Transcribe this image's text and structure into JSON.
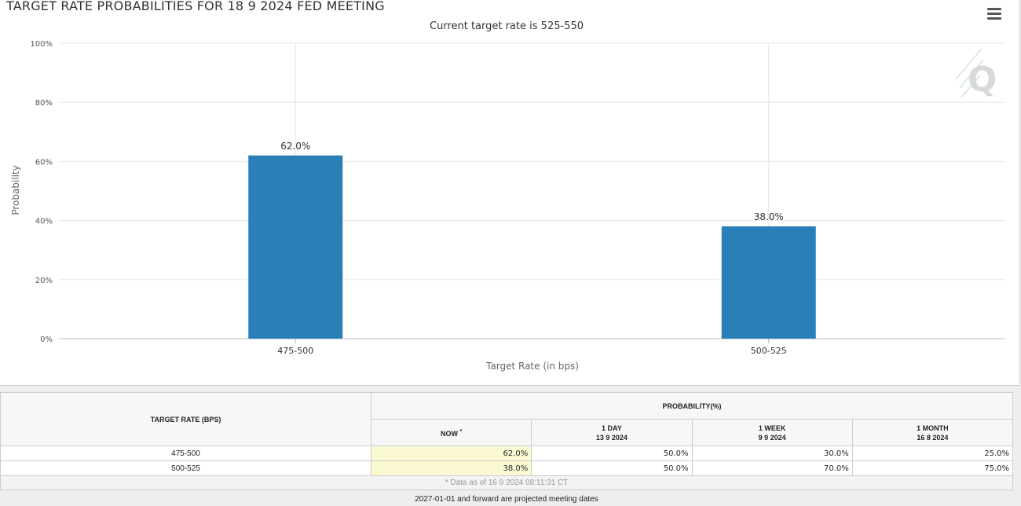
{
  "chart": {
    "title": "TARGET RATE PROBABILITIES FOR 18 9 2024 FED MEETING",
    "subtitle": "Current target rate is 525-550",
    "menu_icon": "hamburger-menu-icon",
    "watermark_icon": "q-logo-icon",
    "bar_color": "#2a7fb8",
    "grid_color": "#e6e6e6"
  },
  "chart_data": {
    "type": "bar",
    "title": "TARGET RATE PROBABILITIES FOR 18 9 2024 FED MEETING",
    "subtitle": "Current target rate is 525-550",
    "categories": [
      "475-500",
      "500-525"
    ],
    "values": [
      62.0,
      38.0
    ],
    "data_labels": [
      "62.0%",
      "38.0%"
    ],
    "xlabel": "Target Rate (in bps)",
    "ylabel": "Probability",
    "ylim": [
      0,
      100
    ],
    "yticks": [
      "0%",
      "20%",
      "40%",
      "60%",
      "80%",
      "100%"
    ],
    "grid": true,
    "legend": "none"
  },
  "table": {
    "rate_header": "TARGET RATE (BPS)",
    "prob_header": "PROBABILITY(%)",
    "col_now": "NOW",
    "col_now_mark": "*",
    "col_1day": "1 DAY",
    "col_1day_date": "13 9 2024",
    "col_1week": "1 WEEK",
    "col_1week_date": "9 9 2024",
    "col_1month": "1 MONTH",
    "col_1month_date": "16 8 2024",
    "rows": [
      {
        "rate": "475-500",
        "now": "62.0%",
        "day": "50.0%",
        "week": "30.0%",
        "month": "25.0%"
      },
      {
        "rate": "500-525",
        "now": "38.0%",
        "day": "50.0%",
        "week": "70.0%",
        "month": "75.0%"
      }
    ],
    "data_note": "* Data as of 16 9 2024 08:11:31 CT"
  },
  "footer_note": "2027-01-01 and forward are projected meeting dates"
}
